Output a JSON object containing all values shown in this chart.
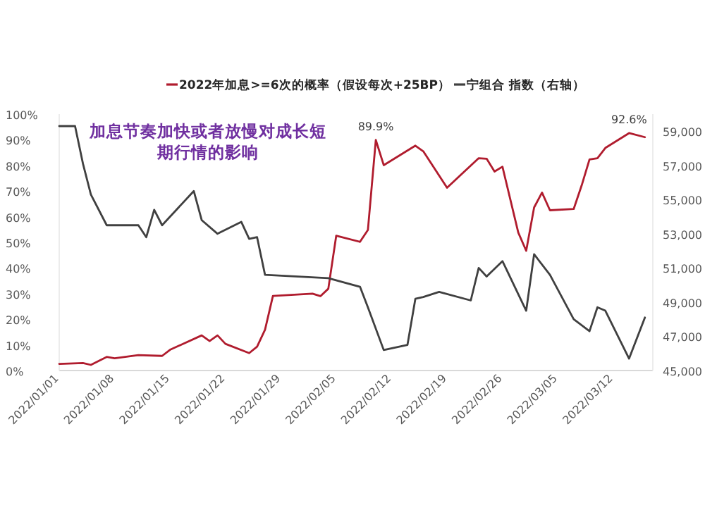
{
  "chart_data": {
    "type": "line",
    "title": "加息节奏加快或者放慢对成长短期行情的影响",
    "legend": "top",
    "grid": false,
    "marker": "none",
    "line_style": "solid",
    "xlim": [
      "2022-01-01",
      "2022-03-17"
    ],
    "xticks": [
      {
        "value": "2022-01-01",
        "label": "2022/01/01"
      },
      {
        "value": "2022-01-08",
        "label": "2022/01/08"
      },
      {
        "value": "2022-01-15",
        "label": "2022/01/15"
      },
      {
        "value": "2022-01-22",
        "label": "2022/01/22"
      },
      {
        "value": "2022-01-29",
        "label": "2022/01/29"
      },
      {
        "value": "2022-02-05",
        "label": "2022/02/05"
      },
      {
        "value": "2022-02-12",
        "label": "2022/02/12"
      },
      {
        "value": "2022-02-19",
        "label": "2022/02/19"
      },
      {
        "value": "2022-02-26",
        "label": "2022/02/26"
      },
      {
        "value": "2022-03-05",
        "label": "2022/03/05"
      },
      {
        "value": "2022-03-12",
        "label": "2022/03/12"
      }
    ],
    "ylim": [
      0,
      100
    ],
    "yticks": [
      {
        "value": 0,
        "label": "0%"
      },
      {
        "value": 10,
        "label": "10%"
      },
      {
        "value": 20,
        "label": "20%"
      },
      {
        "value": 30,
        "label": "30%"
      },
      {
        "value": 40,
        "label": "40%"
      },
      {
        "value": 50,
        "label": "50%"
      },
      {
        "value": 60,
        "label": "60%"
      },
      {
        "value": 70,
        "label": "70%"
      },
      {
        "value": 80,
        "label": "80%"
      },
      {
        "value": 90,
        "label": "90%"
      },
      {
        "value": 100,
        "label": "100%"
      }
    ],
    "y2lim": [
      45000,
      60000
    ],
    "y2ticks": [
      {
        "value": 45000,
        "label": "45,000"
      },
      {
        "value": 47000,
        "label": "47,000"
      },
      {
        "value": 49000,
        "label": "49,000"
      },
      {
        "value": 51000,
        "label": "51,000"
      },
      {
        "value": 53000,
        "label": "53,000"
      },
      {
        "value": 55000,
        "label": "55,000"
      },
      {
        "value": 57000,
        "label": "57,000"
      },
      {
        "value": 59000,
        "label": "59,000"
      }
    ],
    "annotations": [
      {
        "text": "89.9%",
        "x": "2022-02-10",
        "y": 89.9
      },
      {
        "text": "92.6%",
        "x": "2022-03-14",
        "y": 92.6
      }
    ],
    "series": [
      {
        "name": "2022年加息>=6次的概率（假设每次+25BP）",
        "color": "#b01c2e",
        "x": [
          "2022-01-01",
          "2022-01-04",
          "2022-01-05",
          "2022-01-07",
          "2022-01-08",
          "2022-01-11",
          "2022-01-14",
          "2022-01-15",
          "2022-01-19",
          "2022-01-20",
          "2022-01-21",
          "2022-01-22",
          "2022-01-25",
          "2022-01-26",
          "2022-01-27",
          "2022-01-28",
          "2022-02-02",
          "2022-02-03",
          "2022-02-04",
          "2022-02-05",
          "2022-02-08",
          "2022-02-09",
          "2022-02-10",
          "2022-02-11",
          "2022-02-15",
          "2022-02-16",
          "2022-02-19",
          "2022-02-23",
          "2022-02-24",
          "2022-02-25",
          "2022-02-26",
          "2022-02-28",
          "2022-03-01",
          "2022-03-02",
          "2022-03-03",
          "2022-03-04",
          "2022-03-07",
          "2022-03-08",
          "2022-03-09",
          "2022-03-10",
          "2022-03-11",
          "2022-03-14",
          "2022-03-16"
        ],
        "values": [
          2.6,
          2.9,
          2.2,
          5.3,
          4.8,
          6.0,
          5.7,
          8.1,
          13.7,
          11.5,
          13.7,
          10.4,
          6.8,
          9.3,
          15.9,
          29.1,
          30,
          29,
          31.9,
          52.6,
          50.2,
          54.8,
          89.9,
          80.1,
          87.7,
          85.5,
          71.3,
          82.8,
          82.6,
          77.6,
          79.5,
          53.8,
          46.7,
          63.6,
          69.4,
          62.5,
          63,
          72.1,
          82.3,
          82.8,
          86.8,
          92.6,
          91
        ]
      },
      {
        "name": "宁组合 指数（右轴）",
        "color": "#404040",
        "axis": "y2",
        "x": [
          "2022-01-01",
          "2022-01-03",
          "2022-01-04",
          "2022-01-05",
          "2022-01-07",
          "2022-01-11",
          "2022-01-12",
          "2022-01-13",
          "2022-01-14",
          "2022-01-18",
          "2022-01-19",
          "2022-01-21",
          "2022-01-24",
          "2022-01-25",
          "2022-01-26",
          "2022-01-27",
          "2022-02-04",
          "2022-02-08",
          "2022-02-09",
          "2022-02-11",
          "2022-02-14",
          "2022-02-15",
          "2022-02-16",
          "2022-02-18",
          "2022-02-22",
          "2022-02-23",
          "2022-02-24",
          "2022-02-26",
          "2022-03-01",
          "2022-03-02",
          "2022-03-04",
          "2022-03-07",
          "2022-03-09",
          "2022-03-10",
          "2022-03-11",
          "2022-03-14",
          "2022-03-16"
        ],
        "values": [
          59300,
          59300,
          57100,
          55300,
          53500,
          53500,
          52800,
          54400,
          53500,
          55500,
          53800,
          53000,
          53700,
          52700,
          52800,
          50600,
          50400,
          49900,
          48700,
          46200,
          46500,
          49200,
          49300,
          49600,
          49100,
          51000,
          50500,
          51400,
          48500,
          51800,
          50600,
          48000,
          47300,
          48700,
          48500,
          45700,
          48100
        ]
      }
    ]
  }
}
